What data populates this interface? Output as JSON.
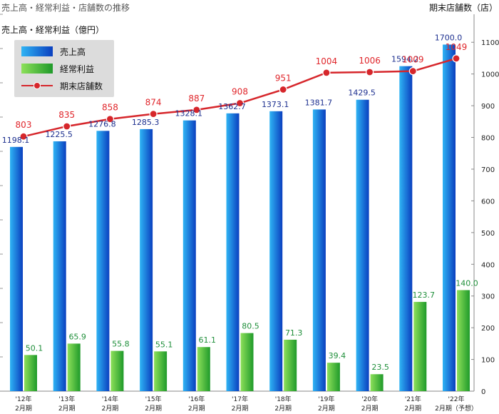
{
  "header": {
    "title": "売上高・経常利益・店舗数の推移",
    "left_unit": "売上高・経常利益（億円）",
    "right_unit": "期末店舗数（店）"
  },
  "legend": {
    "sales": "売上高",
    "profit": "経常利益",
    "stores": "期末店舗数"
  },
  "colors": {
    "sales_light": "#2fb4f4",
    "sales_dark": "#0a3fbf",
    "profit_light": "#8de05a",
    "profit_dark": "#1f9a2a",
    "stores_line": "#d6262b",
    "sales_label": "#1c2f8f",
    "profit_label": "#1f8f3a",
    "stores_label": "#e0262b"
  },
  "chart_data": {
    "type": "bar",
    "categories": [
      {
        "year": "'12年",
        "period": "2月期"
      },
      {
        "year": "'13年",
        "period": "2月期"
      },
      {
        "year": "'14年",
        "period": "2月期"
      },
      {
        "year": "'15年",
        "period": "2月期"
      },
      {
        "year": "'16年",
        "period": "2月期"
      },
      {
        "year": "'17年",
        "period": "2月期"
      },
      {
        "year": "'18年",
        "period": "2月期"
      },
      {
        "year": "'19年",
        "period": "2月期"
      },
      {
        "year": "'20年",
        "period": "2月期"
      },
      {
        "year": "'21年",
        "period": "2月期"
      },
      {
        "year": "'22年",
        "period": "2月期（予想）"
      }
    ],
    "series": [
      {
        "name": "売上高",
        "type": "bar",
        "axis": "left",
        "values": [
          1198.1,
          1225.5,
          1276.8,
          1285.3,
          1328.1,
          1362.7,
          1373.1,
          1381.7,
          1429.5,
          1594.2,
          1700.0
        ],
        "labels": [
          "1198.1",
          "1225.5",
          "1276.8",
          "1285.3",
          "1328.1",
          "1362.7",
          "1373.1",
          "1381.7",
          "1429.5",
          "1594.2",
          "1700.0"
        ]
      },
      {
        "name": "経常利益",
        "type": "bar",
        "axis": "left",
        "values": [
          50.1,
          65.9,
          55.8,
          55.1,
          61.1,
          80.5,
          71.3,
          39.4,
          23.5,
          123.7,
          140.0
        ],
        "labels": [
          "50.1",
          "65.9",
          "55.8",
          "55.1",
          "61.1",
          "80.5",
          "71.3",
          "39.4",
          "23.5",
          "123.7",
          "140.0"
        ]
      },
      {
        "name": "期末店舗数",
        "type": "line",
        "axis": "right",
        "values": [
          803,
          835,
          858,
          874,
          887,
          908,
          951,
          1004,
          1006,
          1009,
          1049
        ],
        "labels": [
          "803",
          "835",
          "858",
          "874",
          "887",
          "908",
          "951",
          "1004",
          "1006",
          "1009",
          "1049"
        ]
      }
    ],
    "right_axis": {
      "ylim": [
        0,
        1150
      ],
      "ticks": [
        "0",
        "100",
        "200",
        "300",
        "400",
        "500",
        "600",
        "700",
        "800",
        "900",
        "1000",
        "1100"
      ]
    },
    "grid": false,
    "legend_position": "top-left"
  }
}
